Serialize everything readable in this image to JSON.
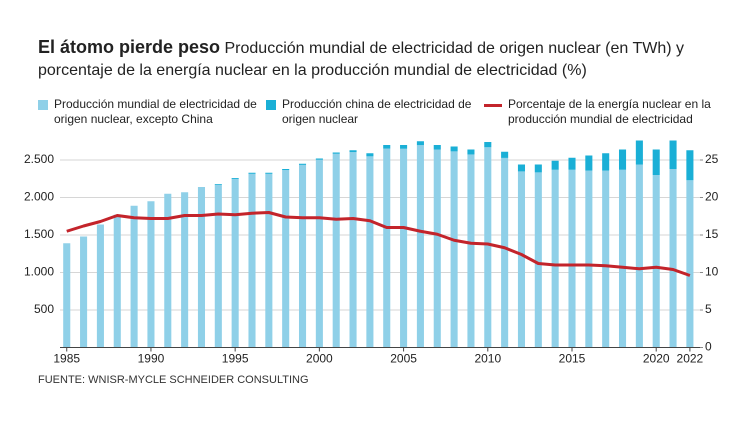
{
  "chart_data": {
    "type": "bar",
    "title": "El átomo pierde peso",
    "subtitle": "Producción mundial de electricidad de origen nuclear (en TWh) y porcentaje de la energía nuclear en la producción mundial de electricidad (%)",
    "source": "FUENTE: WNISR-MYCLE SCHNEIDER CONSULTING",
    "x": [
      1985,
      1986,
      1987,
      1988,
      1989,
      1990,
      1991,
      1992,
      1993,
      1994,
      1995,
      1996,
      1997,
      1998,
      1999,
      2000,
      2001,
      2002,
      2003,
      2004,
      2005,
      2006,
      2007,
      2008,
      2009,
      2010,
      2011,
      2012,
      2013,
      2014,
      2015,
      2016,
      2017,
      2018,
      2019,
      2020,
      2021,
      2022
    ],
    "xlim": [
      1984.6,
      2022.6
    ],
    "xticks": [
      1985,
      1990,
      1995,
      2000,
      2005,
      2010,
      2015,
      2020,
      2022
    ],
    "ylim": [
      0,
      2700
    ],
    "yticks": [
      {
        "value": 500,
        "label": "500"
      },
      {
        "value": 1000,
        "label": "1.000"
      },
      {
        "value": 1500,
        "label": "1.500"
      },
      {
        "value": 2000,
        "label": "2.000"
      },
      {
        "value": 2500,
        "label": "2.500"
      }
    ],
    "y2lim": [
      0,
      27
    ],
    "y2ticks": [
      0,
      5,
      10,
      15,
      20,
      25
    ],
    "grid": true,
    "series": [
      {
        "name": "Producción mundial de electricidad de origen nuclear, excepto China",
        "color": "#8fd0e8",
        "values": [
          1390,
          1480,
          1640,
          1770,
          1890,
          1950,
          2050,
          2070,
          2140,
          2170,
          2248,
          2316,
          2316,
          2366,
          2435,
          2504,
          2583,
          2605,
          2549,
          2652,
          2650,
          2698,
          2640,
          2615,
          2574,
          2670,
          2528,
          2348,
          2335,
          2370,
          2370,
          2360,
          2360,
          2370,
          2440,
          2300,
          2380,
          2230
        ]
      },
      {
        "name": "Producción china de electricidad de origen nuclear",
        "color": "#1aafd6",
        "values": [
          0,
          0,
          0,
          0,
          0,
          0,
          0,
          0,
          0,
          10,
          12,
          14,
          14,
          14,
          15,
          16,
          17,
          25,
          41,
          48,
          50,
          52,
          60,
          65,
          66,
          70,
          82,
          92,
          105,
          120,
          160,
          200,
          230,
          270,
          320,
          340,
          380,
          400
        ]
      },
      {
        "name": "Porcentaje de la energía nuclear en la producción mundial de electricidad",
        "color": "#c3242b",
        "axis": "y2",
        "type": "line",
        "values": [
          15.5,
          16.2,
          16.8,
          17.6,
          17.3,
          17.2,
          17.2,
          17.6,
          17.6,
          17.8,
          17.7,
          17.9,
          18.0,
          17.4,
          17.3,
          17.3,
          17.1,
          17.2,
          16.9,
          16.0,
          16.0,
          15.5,
          15.1,
          14.3,
          13.9,
          13.8,
          13.3,
          12.4,
          11.2,
          11.0,
          11.0,
          11.0,
          10.9,
          10.7,
          10.5,
          10.7,
          10.4,
          9.6
        ]
      }
    ]
  }
}
